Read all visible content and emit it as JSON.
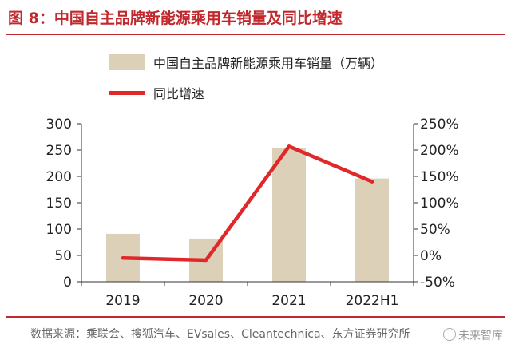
{
  "header": {
    "title": "图 8：中国自主品牌新能源乘用车销量及同比增速"
  },
  "chart_data": {
    "type": "bar",
    "categories": [
      "2019",
      "2020",
      "2021",
      "2022H1"
    ],
    "series": [
      {
        "name": "中国自主品牌新能源乘用车销量（万辆）",
        "type": "bar",
        "axis": "left",
        "values": [
          91,
          82,
          253,
          196
        ]
      },
      {
        "name": "同比增速",
        "type": "line",
        "axis": "right",
        "values": [
          -5,
          -9,
          207,
          140
        ]
      }
    ],
    "left_axis": {
      "min": 0,
      "max": 300,
      "ticks": [
        "0",
        "50",
        "100",
        "150",
        "200",
        "250",
        "300"
      ]
    },
    "right_axis": {
      "min": -50,
      "max": 250,
      "ticks": [
        "-50%",
        "0%",
        "50%",
        "100%",
        "150%",
        "200%",
        "250%"
      ]
    },
    "legend_position": "top-left",
    "grid": false,
    "colors": {
      "bar": "#dcd0b8",
      "line": "#e0282a"
    }
  },
  "footer": {
    "source": "数据来源：乘联会、搜狐汽车、EVsales、Cleantechnica、东方证券研究所",
    "watermark": "未来智库"
  }
}
